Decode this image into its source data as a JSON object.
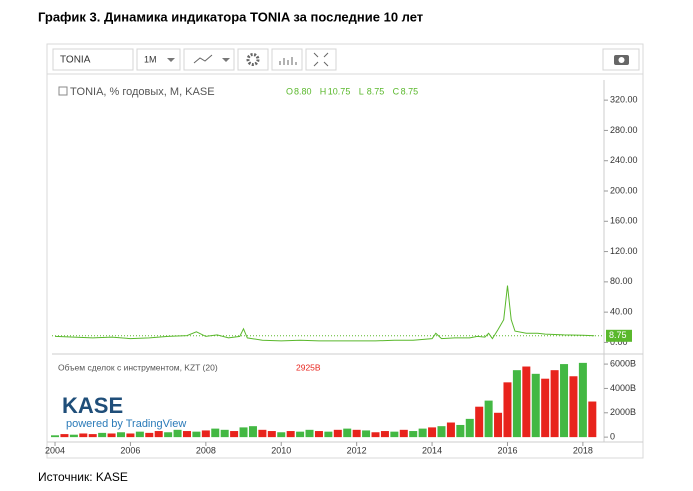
{
  "title": "График 3. Динамика индикатора TONIA за последние 10 лет",
  "toolbar": {
    "symbol": "TONIA",
    "interval": "1M"
  },
  "watermark": {
    "logo": "KASE",
    "powered": "powered by TradingView"
  },
  "source": "Источник: KASE",
  "chart_data": [
    {
      "type": "line",
      "legend_title": "TONIA, % годовых, M, KASE",
      "ohlc": [
        {
          "key": "O",
          "value": "8.80"
        },
        {
          "key": "H",
          "value": "10.75"
        },
        {
          "key": "L",
          "value": "8.75"
        },
        {
          "key": "C",
          "value": "8.75"
        }
      ],
      "last_label": "8.75",
      "color": "#5ab82c",
      "x": [
        2004.0,
        2004.5,
        2005.0,
        2005.5,
        2006.0,
        2006.5,
        2007.0,
        2007.5,
        2007.75,
        2008.0,
        2008.3,
        2008.6,
        2008.9,
        2009.0,
        2009.1,
        2009.5,
        2010.0,
        2010.5,
        2011.0,
        2011.5,
        2012.0,
        2012.5,
        2013.0,
        2013.5,
        2014.0,
        2014.1,
        2014.25,
        2014.6,
        2015.0,
        2015.2,
        2015.4,
        2015.5,
        2015.6,
        2015.75,
        2015.9,
        2016.0,
        2016.1,
        2016.2,
        2016.5,
        2016.8,
        2017.0,
        2017.5,
        2018.0,
        2018.3
      ],
      "values": [
        8,
        7,
        6,
        7,
        5,
        6,
        8,
        9,
        14,
        8,
        10,
        6,
        8,
        18,
        6,
        3,
        2,
        3,
        2,
        2,
        2,
        2,
        3,
        3,
        5,
        12,
        5,
        6,
        6,
        8,
        7,
        12,
        5,
        17,
        30,
        75,
        30,
        15,
        12,
        12,
        11,
        10,
        9.5,
        8.75
      ],
      "xlim": [
        2003.92,
        2018.56
      ],
      "ylim": [
        -10,
        340
      ],
      "yticks": [
        {
          "value": 0,
          "label": "0.00"
        },
        {
          "value": 40,
          "label": "40.00"
        },
        {
          "value": 80,
          "label": "80.00"
        },
        {
          "value": 120,
          "label": "120.00"
        },
        {
          "value": 160,
          "label": "160.00"
        },
        {
          "value": 200,
          "label": "200.00"
        },
        {
          "value": 240,
          "label": "240.00"
        },
        {
          "value": 280,
          "label": "280.00"
        },
        {
          "value": 320,
          "label": "320.00"
        }
      ],
      "grid": false
    },
    {
      "type": "bar",
      "legend_title": "Объем сделок с инструментом, KZT (20)",
      "last_label": "2925B",
      "x": [
        2004.0,
        2004.25,
        2004.5,
        2004.75,
        2005.0,
        2005.25,
        2005.5,
        2005.75,
        2006.0,
        2006.25,
        2006.5,
        2006.75,
        2007.0,
        2007.25,
        2007.5,
        2007.75,
        2008.0,
        2008.25,
        2008.5,
        2008.75,
        2009.0,
        2009.25,
        2009.5,
        2009.75,
        2010.0,
        2010.25,
        2010.5,
        2010.75,
        2011.0,
        2011.25,
        2011.5,
        2011.75,
        2012.0,
        2012.25,
        2012.5,
        2012.75,
        2013.0,
        2013.25,
        2013.5,
        2013.75,
        2014.0,
        2014.25,
        2014.5,
        2014.75,
        2015.0,
        2015.25,
        2015.5,
        2015.75,
        2016.0,
        2016.25,
        2016.5,
        2016.75,
        2017.0,
        2017.25,
        2017.5,
        2017.75,
        2018.0,
        2018.25
      ],
      "values": [
        150,
        250,
        200,
        300,
        250,
        350,
        300,
        400,
        300,
        450,
        350,
        500,
        400,
        600,
        500,
        450,
        550,
        700,
        600,
        500,
        800,
        900,
        600,
        500,
        400,
        500,
        450,
        600,
        500,
        450,
        600,
        700,
        600,
        550,
        400,
        500,
        450,
        600,
        500,
        700,
        800,
        900,
        1200,
        1000,
        1500,
        2500,
        3000,
        2000,
        4500,
        5500,
        5800,
        5200,
        4800,
        5500,
        6000,
        5000,
        6100,
        2925
      ],
      "colors": [
        "#43b843",
        "#e8231c",
        "#43b843",
        "#e8231c",
        "#e8231c",
        "#43b843",
        "#e8231c",
        "#43b843",
        "#e8231c",
        "#43b843",
        "#e8231c",
        "#e8231c",
        "#43b843",
        "#43b843",
        "#e8231c",
        "#43b843",
        "#e8231c",
        "#43b843",
        "#43b843",
        "#e8231c",
        "#43b843",
        "#43b843",
        "#e8231c",
        "#e8231c",
        "#43b843",
        "#e8231c",
        "#43b843",
        "#43b843",
        "#e8231c",
        "#43b843",
        "#e8231c",
        "#43b843",
        "#e8231c",
        "#43b843",
        "#e8231c",
        "#e8231c",
        "#43b843",
        "#e8231c",
        "#43b843",
        "#43b843",
        "#e8231c",
        "#43b843",
        "#e8231c",
        "#43b843",
        "#43b843",
        "#e8231c",
        "#43b843",
        "#e8231c",
        "#e8231c",
        "#43b843",
        "#e8231c",
        "#43b843",
        "#e8231c",
        "#e8231c",
        "#43b843",
        "#e8231c",
        "#43b843",
        "#e8231c"
      ],
      "xlim": [
        2003.92,
        2018.56
      ],
      "xticks": [
        2004,
        2006,
        2008,
        2010,
        2012,
        2014,
        2016,
        2018
      ],
      "ylim": [
        -400,
        6500
      ],
      "yticks": [
        0,
        {
          "value": 2000,
          "label": "2000B"
        },
        {
          "value": 4000,
          "label": "4000B"
        },
        {
          "value": 6000,
          "label": "6000B"
        }
      ]
    }
  ]
}
